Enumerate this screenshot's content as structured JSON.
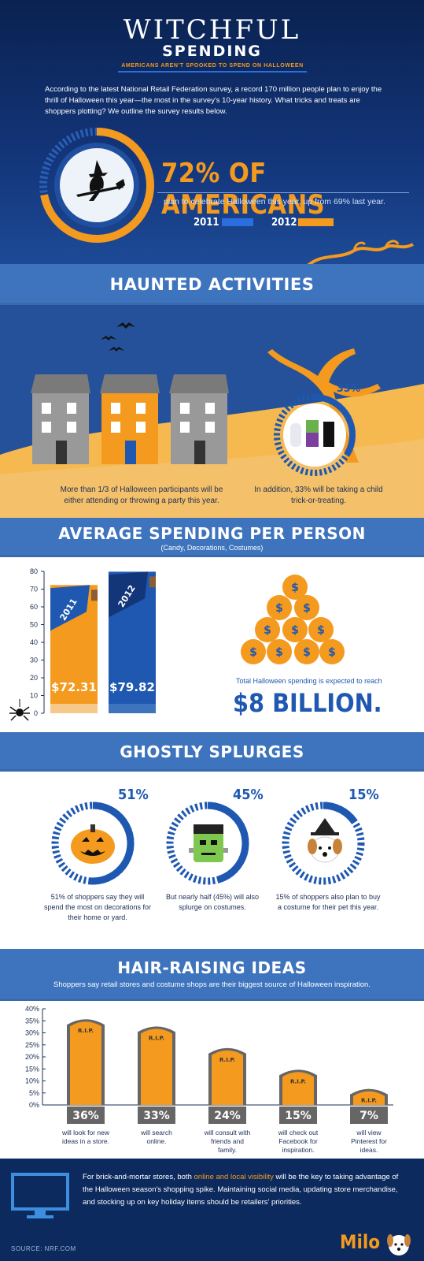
{
  "header": {
    "title_line1": "WITCHFUL",
    "title_line2": "SPENDING",
    "subtitle": "AMERICANS AREN'T SPOOKED TO SPEND ON HALLOWEEN",
    "intro": "According to the latest National Retail Federation survey, a record 170 million people plan to enjoy the thrill of Halloween this year—the most in the survey's 10-year history. What tricks and treats are shoppers plotting? We outline the survey results below.",
    "headline": "72% OF AMERICANS",
    "headline_sub": "plan to celebrate Halloween this year, up from 69% last year.",
    "year_2011": "2011",
    "year_2012": "2012"
  },
  "haunted": {
    "title": "HAUNTED ACTIVITIES",
    "percent": "33%",
    "left_text": "More than 1/3 of Halloween participants will be either attending or throwing a party this year.",
    "right_text": "In addition, 33% will be taking a child trick-or-treating."
  },
  "average": {
    "title": "AVERAGE SPENDING PER PERSON",
    "subtitle": "(Candy, Decorations, Costumes)",
    "total_caption": "Total Halloween spending is expected to reach",
    "total_value": "$8 BILLION."
  },
  "chart_data": {
    "type": "bar",
    "categories": [
      "2011",
      "2012"
    ],
    "values": [
      72.31,
      79.82
    ],
    "value_labels": [
      "$72.31",
      "$79.82"
    ],
    "ylim": [
      0,
      80
    ],
    "yticks": [
      0,
      10,
      20,
      30,
      40,
      50,
      60,
      70,
      80
    ],
    "colors": [
      "#f39a1f",
      "#1f58b0"
    ]
  },
  "ghostly": {
    "title": "GHOSTLY SPLURGES",
    "items": [
      {
        "percent": "51%",
        "value": 0.51,
        "text": "51% of shoppers say they will spend the most on decorations for their home or yard."
      },
      {
        "percent": "45%",
        "value": 0.45,
        "text": "But nearly half (45%) will also splurge on costumes."
      },
      {
        "percent": "15%",
        "value": 0.15,
        "text": "15% of shoppers also plan to buy a costume for their pet this year."
      }
    ]
  },
  "ideas": {
    "title": "HAIR-RAISING IDEAS",
    "subtitle": "Shoppers say retail stores and costume shops are their biggest source of Halloween inspiration.",
    "yticks": [
      "40%",
      "35%",
      "30%",
      "25%",
      "20%",
      "15%",
      "10%",
      "5%",
      "0%"
    ],
    "rip": "R.I.P.",
    "bars": [
      {
        "value": 36,
        "label": "36%",
        "text": "will look for new ideas in a store."
      },
      {
        "value": 33,
        "label": "33%",
        "text": "will search online."
      },
      {
        "value": 24,
        "label": "24%",
        "text": "will consult with friends and family."
      },
      {
        "value": 15,
        "label": "15%",
        "text": "will check out Facebook for inspiration."
      },
      {
        "value": 7,
        "label": "7%",
        "text": "will view Pinterest for ideas."
      }
    ]
  },
  "footer": {
    "text_before": "For brick-and-mortar stores, both ",
    "highlight": "online and local visibility",
    "text_after": " will be the key to taking advantage of the Halloween season's shopping spike. Maintaining social media, updating store merchandise, and stocking up on key holiday items should be retailers' priorities.",
    "source": "SOURCE: NRF.COM",
    "brand": "Milo"
  },
  "colors": {
    "orange": "#f39a1f",
    "blue": "#1f58b0",
    "navy": "#0d2a5e",
    "band": "#3e74bd",
    "sand": "#f6b94f"
  }
}
